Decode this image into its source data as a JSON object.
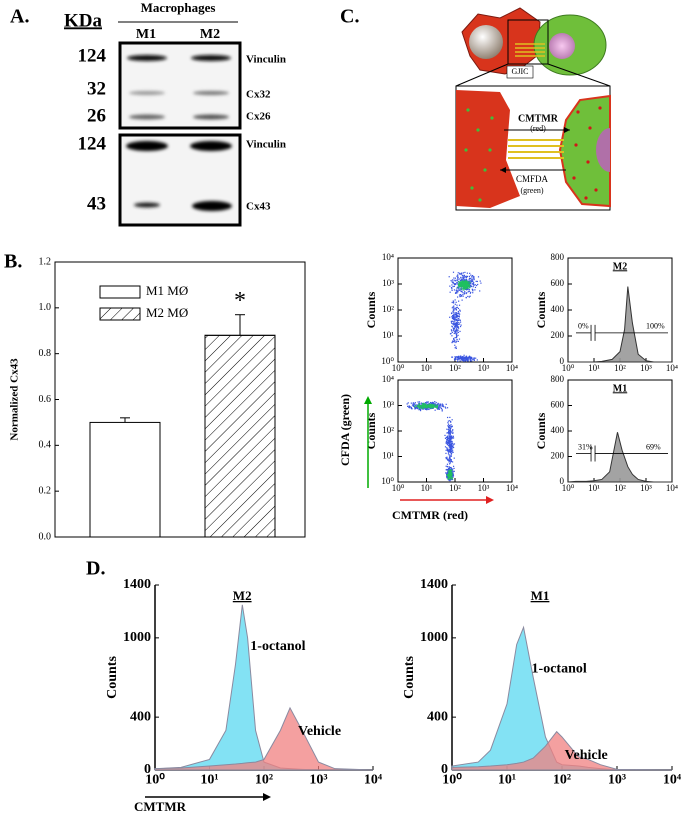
{
  "figure": {
    "panel_labels": [
      "A.",
      "B.",
      "C.",
      "D."
    ],
    "blot": {
      "unit": "KDa",
      "header": "Macrophages",
      "lanes": [
        "M1",
        "M2"
      ],
      "markers_top": [
        "124",
        "32",
        "26"
      ],
      "markers_bottom": [
        "124",
        "43"
      ],
      "bands_top": [
        "Vinculin",
        "Cx32",
        "Cx26"
      ],
      "bands_bottom": [
        "Vinculin",
        "Cx43"
      ]
    },
    "diagram": {
      "junction": "GJIC",
      "forward": "CMTMR",
      "forward_color": "(red)",
      "backward": "CMFDA",
      "backward_color": "(green)"
    }
  },
  "chart_data": [
    {
      "type": "bar",
      "ylabel": "Normalized Cx43",
      "ylim": [
        0,
        1.2
      ],
      "yticks": [
        {
          "value": 0,
          "label": "0.0"
        },
        0.2,
        0.4,
        0.6,
        0.8,
        {
          "value": 1,
          "label": "1.0"
        },
        1.2
      ],
      "frame": true,
      "series": [
        {
          "name": "M1 MØ",
          "values": [
            0.5
          ],
          "errors": [
            0.02
          ],
          "color": "#ffffff",
          "pattern": "none"
        },
        {
          "name": "M2 MØ",
          "values": [
            0.88
          ],
          "errors": [
            0.09
          ],
          "color": "#ffffff",
          "pattern": "hatch"
        }
      ],
      "annotations": [
        "*"
      ]
    },
    {
      "type": "dotplot",
      "ylabel": "Counts",
      "xlim": [
        1,
        10000
      ],
      "ylim": [
        1,
        10000
      ],
      "log": true,
      "frame": true,
      "xticks": [
        {
          "value": 1,
          "label": "10⁰"
        },
        {
          "value": 10,
          "label": "10¹"
        },
        {
          "value": 100,
          "label": "10²"
        },
        {
          "value": 1000,
          "label": "10³"
        },
        {
          "value": 10000,
          "label": "10⁴"
        }
      ],
      "yticks": [
        {
          "value": 1,
          "label": "10⁰"
        },
        {
          "value": 10,
          "label": "10¹"
        },
        {
          "value": 100,
          "label": "10²"
        },
        {
          "value": 1000,
          "label": "10³"
        },
        {
          "value": 10000,
          "label": "10⁴"
        }
      ]
    },
    {
      "type": "dotplot",
      "ylabel": "Counts",
      "ylabel_outer": "CFDA (green)",
      "xlabel": "CMTMR (red)",
      "xlim": [
        1,
        10000
      ],
      "ylim": [
        1,
        10000
      ],
      "log": true,
      "frame": true,
      "xticks": [
        {
          "value": 1,
          "label": "10⁰"
        },
        {
          "value": 10,
          "label": "10¹"
        },
        {
          "value": 100,
          "label": "10²"
        },
        {
          "value": 1000,
          "label": "10³"
        },
        {
          "value": 10000,
          "label": "10⁴"
        }
      ],
      "yticks": [
        {
          "value": 1,
          "label": "10⁰"
        },
        {
          "value": 10,
          "label": "10¹"
        },
        {
          "value": 100,
          "label": "10²"
        },
        {
          "value": 1000,
          "label": "10³"
        },
        {
          "value": 10000,
          "label": "10⁴"
        }
      ]
    },
    {
      "type": "area",
      "title": "M2",
      "ylabel": "Counts",
      "xlim": [
        1,
        10000
      ],
      "ylim": [
        0,
        800
      ],
      "log": true,
      "frame": true,
      "xticks": [
        {
          "value": 1,
          "label": "10⁰"
        },
        {
          "value": 10,
          "label": "10¹"
        },
        {
          "value": 100,
          "label": "10²"
        },
        {
          "value": 1000,
          "label": "10³"
        },
        {
          "value": 10000,
          "label": "10⁴"
        }
      ],
      "yticks": [
        0,
        200,
        400,
        600,
        800
      ],
      "annotations": [
        "0%",
        "100%"
      ],
      "x": [
        1,
        2,
        5,
        10,
        20,
        50,
        100,
        150,
        200,
        300,
        500,
        1000,
        2000,
        5000,
        10000
      ],
      "series": [
        {
          "color": "#999999",
          "values": [
            0,
            0,
            0,
            0,
            5,
            20,
            80,
            250,
            580,
            300,
            60,
            10,
            0,
            0,
            0
          ]
        }
      ]
    },
    {
      "type": "area",
      "title": "M1",
      "ylabel": "Counts",
      "xlim": [
        1,
        10000
      ],
      "ylim": [
        0,
        800
      ],
      "log": true,
      "frame": true,
      "xticks": [
        {
          "value": 1,
          "label": "10⁰"
        },
        {
          "value": 10,
          "label": "10¹"
        },
        {
          "value": 100,
          "label": "10²"
        },
        {
          "value": 1000,
          "label": "10³"
        },
        {
          "value": 10000,
          "label": "10⁴"
        }
      ],
      "yticks": [
        0,
        200,
        400,
        600,
        800
      ],
      "annotations": [
        "31%",
        "69%"
      ],
      "x": [
        1,
        2,
        5,
        10,
        20,
        40,
        80,
        120,
        200,
        300,
        500,
        1000,
        2000,
        5000,
        10000
      ],
      "series": [
        {
          "color": "#999999",
          "values": [
            0,
            5,
            5,
            10,
            20,
            80,
            390,
            250,
            120,
            60,
            20,
            5,
            0,
            0,
            0
          ]
        }
      ]
    },
    {
      "type": "area",
      "title": "M2",
      "ylabel": "Counts",
      "xlabel": "CMTMR",
      "xlim": [
        1,
        10000
      ],
      "ylim": [
        0,
        1400
      ],
      "log": true,
      "frame": false,
      "xticks": [
        {
          "value": 1,
          "label": "10⁰"
        },
        {
          "value": 10,
          "label": "10¹"
        },
        {
          "value": 100,
          "label": "10²"
        },
        {
          "value": 1000,
          "label": "10³"
        },
        {
          "value": 10000,
          "label": "10⁴"
        }
      ],
      "yticks": [
        0,
        400,
        1000,
        1400
      ],
      "x": [
        1,
        3,
        10,
        20,
        30,
        40,
        50,
        70,
        100,
        200,
        300,
        500,
        1000,
        2000,
        10000
      ],
      "series": [
        {
          "name": "1-octanol",
          "color": "#5ad8f0",
          "values": [
            10,
            20,
            80,
            300,
            800,
            1250,
            1000,
            300,
            60,
            15,
            10,
            5,
            0,
            0,
            0
          ]
        },
        {
          "name": "Vehicle",
          "color": "#f08080",
          "values": [
            10,
            15,
            30,
            40,
            45,
            50,
            55,
            60,
            80,
            300,
            470,
            300,
            60,
            10,
            0
          ]
        }
      ]
    },
    {
      "type": "area",
      "title": "M1",
      "ylabel": "Counts",
      "xlim": [
        1,
        10000
      ],
      "ylim": [
        0,
        1400
      ],
      "log": true,
      "frame": false,
      "xticks": [
        {
          "value": 1,
          "label": "10⁰"
        },
        {
          "value": 10,
          "label": "10¹"
        },
        {
          "value": 100,
          "label": "10²"
        },
        {
          "value": 1000,
          "label": "10³"
        },
        {
          "value": 10000,
          "label": "10⁴"
        }
      ],
      "yticks": [
        0,
        400,
        1000,
        1400
      ],
      "x": [
        1,
        3,
        5,
        10,
        15,
        20,
        30,
        50,
        80,
        100,
        200,
        300,
        500,
        1000,
        10000
      ],
      "series": [
        {
          "name": "1-octanol",
          "color": "#5ad8f0",
          "values": [
            30,
            60,
            150,
            500,
            950,
            1080,
            700,
            250,
            60,
            40,
            30,
            20,
            10,
            0,
            0
          ]
        },
        {
          "name": "Vehicle",
          "color": "#f08080",
          "values": [
            20,
            25,
            30,
            40,
            50,
            60,
            90,
            180,
            290,
            250,
            100,
            80,
            40,
            5,
            0
          ]
        }
      ]
    }
  ]
}
